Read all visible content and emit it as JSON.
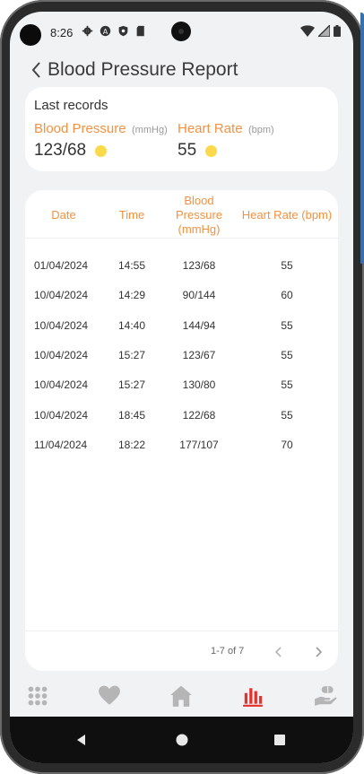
{
  "status": {
    "time": "8:26",
    "left_icons": [
      "gear-icon",
      "a-badge-icon",
      "shield-icon",
      "sd-card-icon"
    ],
    "right_icons": [
      "wifi-icon",
      "signal-icon",
      "battery-icon"
    ]
  },
  "header": {
    "title": "Blood Pressure Report"
  },
  "last_records": {
    "title": "Last records",
    "blood_pressure": {
      "label": "Blood Pressure",
      "unit": "(mmHg)",
      "value": "123/68",
      "status_color": "#fbd94a"
    },
    "heart_rate": {
      "label": "Heart Rate",
      "unit": "(bpm)",
      "value": "55",
      "status_color": "#fbd94a"
    }
  },
  "table": {
    "headers": {
      "date": "Date",
      "time": "Time",
      "bp": "Blood Pressure (mmHg)",
      "hr": "Heart Rate (bpm)"
    },
    "rows": [
      {
        "date": "01/04/2024",
        "time": "14:55",
        "bp": "123/68",
        "hr": "55"
      },
      {
        "date": "10/04/2024",
        "time": "14:29",
        "bp": "90/144",
        "hr": "60"
      },
      {
        "date": "10/04/2024",
        "time": "14:40",
        "bp": "144/94",
        "hr": "55"
      },
      {
        "date": "10/04/2024",
        "time": "15:27",
        "bp": "123/67",
        "hr": "55"
      },
      {
        "date": "10/04/2024",
        "time": "15:27",
        "bp": "130/80",
        "hr": "55"
      },
      {
        "date": "10/04/2024",
        "time": "18:45",
        "bp": "122/68",
        "hr": "55"
      },
      {
        "date": "11/04/2024",
        "time": "18:22",
        "bp": "177/107",
        "hr": "70"
      }
    ],
    "pagination": "1-7 of 7"
  },
  "bottom_nav": {
    "items": [
      "grid-icon",
      "heart-icon",
      "home-icon",
      "bar-chart-icon",
      "hand-pill-icon"
    ],
    "active": "bar-chart-icon"
  },
  "colors": {
    "accent": "#f39140",
    "active_nav": "#e5312e",
    "inactive_nav": "#b5b5b5",
    "background": "#f1f2f4",
    "status_dot": "#fbd94a"
  }
}
